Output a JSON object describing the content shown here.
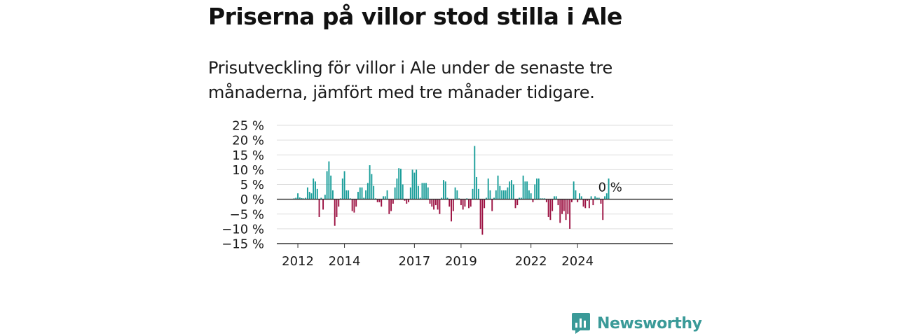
{
  "title": "Priserna på villor stod stilla i Ale",
  "subtitle": "Prisutveckling för villor i Ale under de senaste tre månaderna, jämfört med tre månader tidigare.",
  "brand": {
    "name": "Newsworthy",
    "icon": "newsworthy-chart-logo-icon",
    "color": "#3a9a98"
  },
  "colors": {
    "positive": "#1a9e9a",
    "negative": "#9c1142",
    "grid": "#dddddd",
    "zero_line": "#333333"
  },
  "chart_data": {
    "type": "bar",
    "title": "Priserna på villor stod stilla i Ale",
    "subtitle": "Prisutveckling för villor i Ale under de senaste tre månaderna, jämfört med tre månader tidigare.",
    "xlabel": "",
    "ylabel": "",
    "ylim": [
      -15,
      25
    ],
    "y_ticks": [
      25,
      20,
      15,
      10,
      5,
      0,
      -5,
      -10,
      -15
    ],
    "y_tick_labels": [
      "25 %",
      "20 %",
      "15 %",
      "10 %",
      "5 %",
      "0 %",
      "−5 %",
      "−10 %",
      "−15 %"
    ],
    "x_start": "2011-11",
    "frequency": "monthly",
    "x_ticks": [
      "2012-01",
      "2014-01",
      "2017-01",
      "2019-01",
      "2022-01",
      "2024-01"
    ],
    "x_tick_labels": [
      "2012",
      "2014",
      "2017",
      "2019",
      "2022",
      "2024"
    ],
    "grid": true,
    "annotation": {
      "text": "0 %",
      "value": 0
    },
    "values": [
      0.3,
      0.5,
      2,
      0.6,
      0.4,
      0.3,
      0.5,
      4,
      2.5,
      2,
      7,
      6,
      3.5,
      -6,
      0.5,
      -3.5,
      1.5,
      9.5,
      12.8,
      8,
      3,
      -9,
      -6,
      -2.5,
      0.3,
      7,
      9.5,
      3,
      3,
      0.3,
      -4,
      -4.5,
      -2.5,
      2.5,
      4,
      4,
      0.5,
      3,
      5.5,
      11.5,
      8.5,
      4.5,
      0.3,
      -1,
      -1,
      -2.5,
      1,
      1,
      3,
      -5,
      -4,
      -1.5,
      4,
      7,
      10.5,
      10.3,
      5,
      -0.5,
      -1.5,
      -1,
      4,
      10,
      9,
      10,
      4.5,
      0.5,
      5.5,
      5.5,
      5.5,
      4,
      -1.5,
      -2.5,
      -3.5,
      -2,
      -3.5,
      -5,
      0.5,
      6.5,
      6,
      0.5,
      -2.5,
      -7.5,
      -4,
      4,
      3,
      0.3,
      -2,
      -3.5,
      -2.5,
      0.3,
      -3,
      -2.5,
      3.5,
      18,
      7.5,
      3.5,
      -10,
      -12,
      -3,
      0.5,
      7,
      3,
      -4,
      0.5,
      3,
      8,
      4.5,
      3,
      3,
      3,
      4,
      6,
      6.5,
      5,
      -3,
      -2,
      0.5,
      0.5,
      8,
      6,
      6,
      3,
      2,
      -1,
      5,
      7,
      7,
      0.3,
      0.3,
      0.3,
      -1,
      -6,
      -7,
      -4,
      1,
      1,
      -2,
      -8,
      -5,
      -4,
      -7,
      -5,
      -10,
      -1,
      6,
      3,
      -1,
      2,
      1,
      -2.5,
      -3,
      -0.5,
      -3,
      1,
      -2,
      1,
      0.5,
      0.5,
      -1.5,
      -7,
      1,
      2,
      7
    ]
  }
}
